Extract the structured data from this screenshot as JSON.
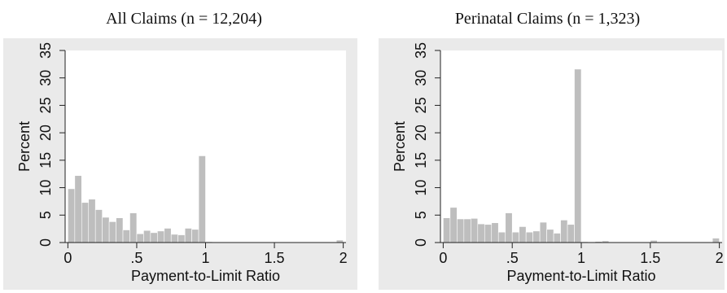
{
  "chart_data": [
    {
      "type": "bar",
      "title": "All Claims (n = 12,204)",
      "xlabel": "Payment-to-Limit Ratio",
      "ylabel": "Percent",
      "xlim": [
        -0.02,
        2.02
      ],
      "ylim": [
        0,
        35
      ],
      "xticks": [
        0,
        0.5,
        1,
        1.5,
        2
      ],
      "xtick_labels": [
        "0",
        ".5",
        "1",
        "1.5",
        "2"
      ],
      "yticks": [
        0,
        5,
        10,
        15,
        20,
        25,
        30,
        35
      ],
      "ytick_labels": [
        "0",
        "5",
        "10",
        "15",
        "20",
        "25",
        "30",
        "35"
      ],
      "bin_width": 0.05,
      "bin_starts": [
        0,
        0.05,
        0.1,
        0.15,
        0.2,
        0.25,
        0.3,
        0.35,
        0.4,
        0.45,
        0.5,
        0.55,
        0.6,
        0.65,
        0.7,
        0.75,
        0.8,
        0.85,
        0.9,
        0.95,
        1.0,
        1.05,
        1.1,
        1.15,
        1.2,
        1.25,
        1.3,
        1.35,
        1.4,
        1.45,
        1.5,
        1.55,
        1.6,
        1.65,
        1.7,
        1.75,
        1.8,
        1.85,
        1.9,
        1.95
      ],
      "values": [
        9.8,
        12.2,
        7.3,
        7.9,
        6.0,
        4.6,
        3.8,
        4.5,
        2.3,
        5.4,
        1.6,
        2.2,
        1.8,
        2.1,
        2.6,
        1.5,
        1.4,
        2.6,
        2.4,
        15.8,
        0.15,
        0.1,
        0.1,
        0.1,
        0.1,
        0.1,
        0.05,
        0.05,
        0.05,
        0.05,
        0.05,
        0.05,
        0.05,
        0.05,
        0.05,
        0.05,
        0.05,
        0.05,
        0.05,
        0.45
      ],
      "grid": false,
      "bar_color": "#bebebe",
      "background": "#eaeaea"
    },
    {
      "type": "bar",
      "title": "Perinatal Claims (n = 1,323)",
      "xlabel": "Payment-to-Limit Ratio",
      "ylabel": "Percent",
      "xlim": [
        -0.02,
        2.02
      ],
      "ylim": [
        0,
        35
      ],
      "xticks": [
        0,
        0.5,
        1,
        1.5,
        2
      ],
      "xtick_labels": [
        "0",
        ".5",
        "1",
        "1.5",
        "2"
      ],
      "yticks": [
        0,
        5,
        10,
        15,
        20,
        25,
        30,
        35
      ],
      "ytick_labels": [
        "0",
        "5",
        "10",
        "15",
        "20",
        "25",
        "30",
        "35"
      ],
      "bin_width": 0.05,
      "bin_starts": [
        0,
        0.05,
        0.1,
        0.15,
        0.2,
        0.25,
        0.3,
        0.35,
        0.4,
        0.45,
        0.5,
        0.55,
        0.6,
        0.65,
        0.7,
        0.75,
        0.8,
        0.85,
        0.9,
        0.95,
        1.0,
        1.05,
        1.1,
        1.15,
        1.2,
        1.25,
        1.3,
        1.35,
        1.4,
        1.45,
        1.5,
        1.55,
        1.6,
        1.65,
        1.7,
        1.75,
        1.8,
        1.85,
        1.9,
        1.95
      ],
      "values": [
        4.5,
        6.4,
        4.3,
        4.3,
        4.4,
        3.4,
        3.3,
        3.6,
        1.9,
        5.4,
        1.9,
        2.9,
        1.9,
        2.1,
        3.7,
        2.4,
        1.7,
        4.1,
        3.3,
        31.6,
        0.15,
        0.1,
        0.2,
        0.3,
        0.1,
        0.1,
        0.05,
        0.05,
        0.05,
        0.05,
        0.4,
        0.05,
        0.05,
        0.05,
        0.05,
        0.05,
        0.05,
        0.05,
        0.05,
        0.8
      ],
      "grid": false,
      "bar_color": "#bebebe",
      "background": "#eaeaea"
    }
  ]
}
